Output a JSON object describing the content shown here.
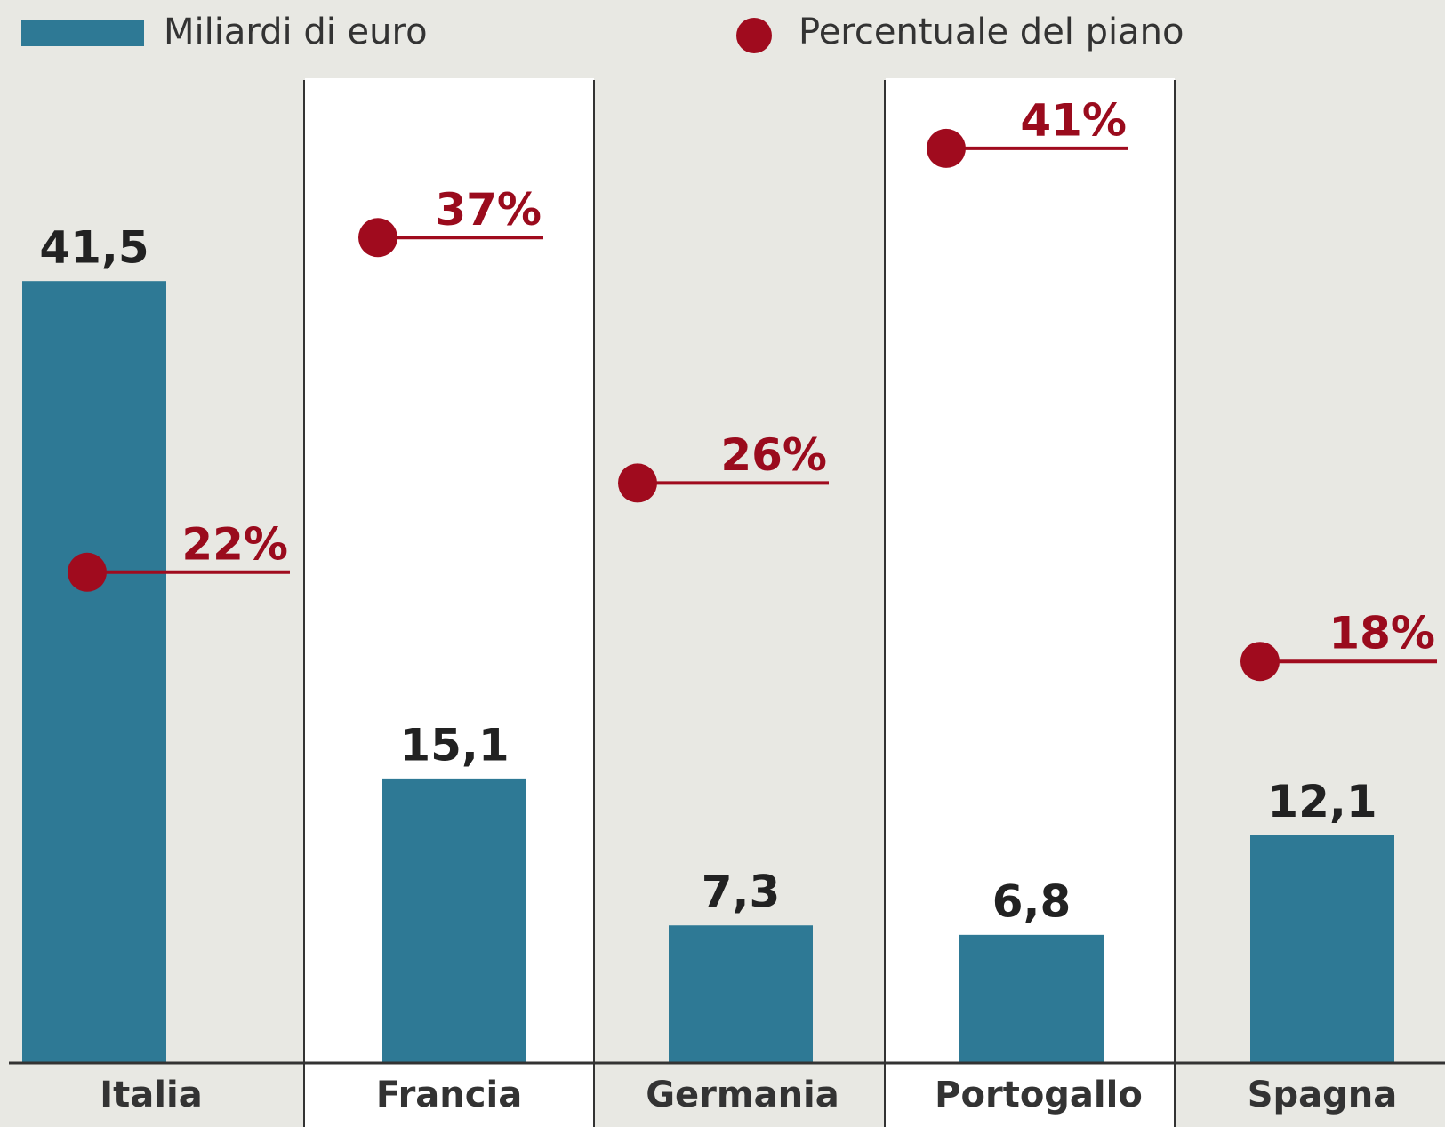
{
  "chart_data": {
    "type": "bar_dot",
    "categories": [
      "Italia",
      "Francia",
      "Germania",
      "Portogallo",
      "Spagna"
    ],
    "series": [
      {
        "name": "Miliardi di euro",
        "color": "#2e7995",
        "values": [
          41.5,
          15.1,
          7.3,
          6.8,
          12.1
        ],
        "value_labels": [
          "41,5",
          "15,1",
          "7,3",
          "6,8",
          "12,1"
        ]
      },
      {
        "name": "Percentuale del piano",
        "color": "#a00b1e",
        "values": [
          22,
          37,
          26,
          41,
          18
        ],
        "value_labels": [
          "22%",
          "37%",
          "26%",
          "41%",
          "18%"
        ]
      }
    ]
  }
}
